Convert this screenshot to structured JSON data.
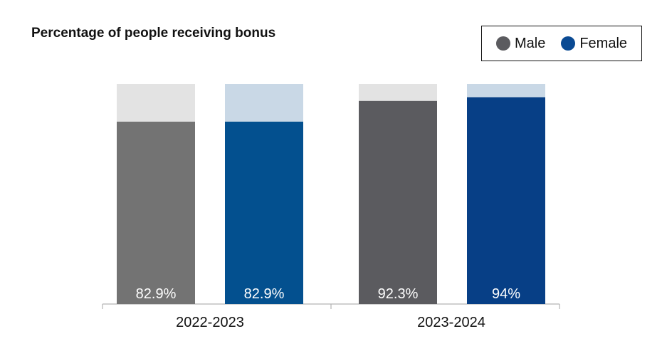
{
  "chart_data": {
    "type": "bar",
    "title": "Percentage of people receiving bonus",
    "categories": [
      "2022-2023",
      "2023-2024"
    ],
    "ylim": [
      0,
      100
    ],
    "legend_position": "top-right",
    "grid": false,
    "series": [
      {
        "name": "Male",
        "values": [
          82.9,
          92.3
        ],
        "labels": [
          "82.9%",
          "92.3%"
        ],
        "legend_color": "#5b5b5f",
        "bar_colors": [
          "#737373",
          "#5b5b5f"
        ],
        "remainder_color": "#e3e3e3"
      },
      {
        "name": "Female",
        "values": [
          82.9,
          94
        ],
        "labels": [
          "82.9%",
          "94%"
        ],
        "legend_color": "#0a4a93",
        "bar_colors": [
          "#03508f",
          "#073f86"
        ],
        "remainder_color": "#c9d8e6"
      }
    ]
  }
}
